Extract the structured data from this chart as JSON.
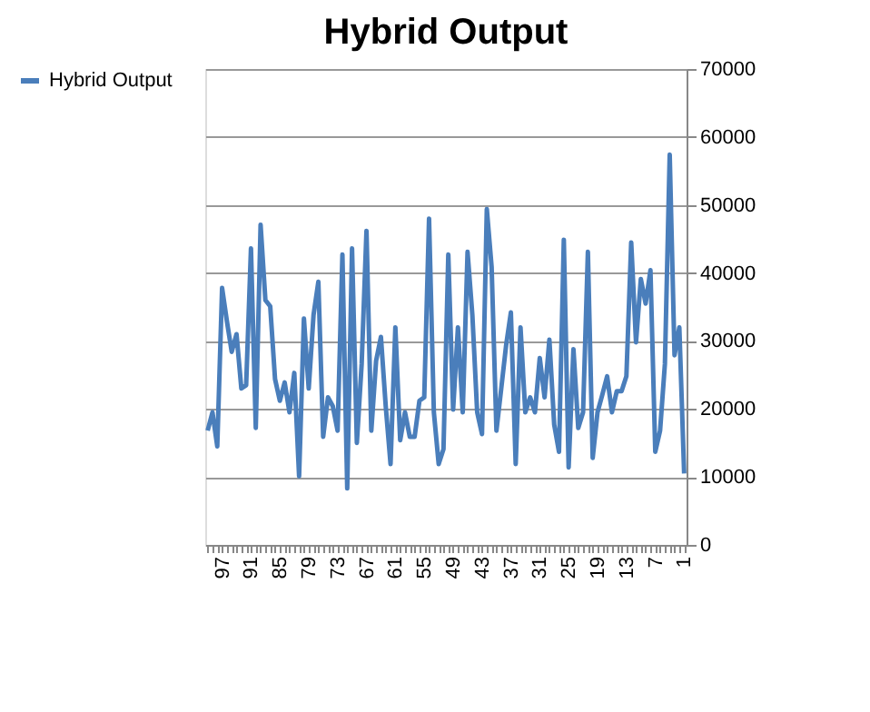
{
  "chart_data": {
    "type": "line",
    "title": "Hybrid Output",
    "categories": [
      null,
      null,
      null,
      "97",
      null,
      null,
      null,
      null,
      null,
      "91",
      null,
      null,
      null,
      null,
      null,
      "85",
      null,
      null,
      null,
      null,
      null,
      "79",
      null,
      null,
      null,
      null,
      null,
      "73",
      null,
      null,
      null,
      null,
      null,
      "67",
      null,
      null,
      null,
      null,
      null,
      "61",
      null,
      null,
      null,
      null,
      null,
      "55",
      null,
      null,
      null,
      null,
      null,
      "49",
      null,
      null,
      null,
      null,
      null,
      "43",
      null,
      null,
      null,
      null,
      null,
      "37",
      null,
      null,
      null,
      null,
      null,
      "31",
      null,
      null,
      null,
      null,
      null,
      "25",
      null,
      null,
      null,
      null,
      null,
      "19",
      null,
      null,
      null,
      null,
      null,
      "13",
      null,
      null,
      null,
      null,
      null,
      "7",
      null,
      null,
      null,
      null,
      null,
      "1"
    ],
    "series": [
      {
        "name": "Hybrid Output",
        "color": "#4a7ebb",
        "values": [
          16800,
          19500,
          14500,
          37800,
          32900,
          28400,
          31000,
          23000,
          23500,
          43600,
          17200,
          47100,
          36000,
          35100,
          24400,
          21200,
          23900,
          19500,
          25300,
          10100,
          33300,
          23000,
          33800,
          38700,
          15900,
          21700,
          20400,
          16800,
          42700,
          8300,
          43600,
          15000,
          26600,
          46200,
          16800,
          27100,
          30600,
          20400,
          11900,
          32000,
          15400,
          19500,
          15900,
          15900,
          21200,
          21700,
          48000,
          19500,
          11900,
          14100,
          42700,
          19900,
          32000,
          19500,
          43100,
          33800,
          19500,
          16300,
          49400,
          40900,
          16800,
          23000,
          29300,
          34200,
          11900,
          32000,
          19500,
          21700,
          19500,
          27500,
          21700,
          30200,
          17700,
          13700,
          44900,
          11400,
          28800,
          17200,
          19500,
          43100,
          12800,
          19500,
          22100,
          24800,
          19500,
          22600,
          22600,
          24800,
          44500,
          29800,
          39100,
          35500,
          40400,
          13700,
          16800,
          26600,
          57400,
          27900,
          32000,
          10500
        ]
      }
    ],
    "ylim": [
      0,
      70000
    ],
    "yticks": [
      0,
      10000,
      20000,
      30000,
      40000,
      50000,
      60000,
      70000
    ],
    "grid": "y",
    "legend": "left",
    "line_style": "solid",
    "marker": "none"
  }
}
